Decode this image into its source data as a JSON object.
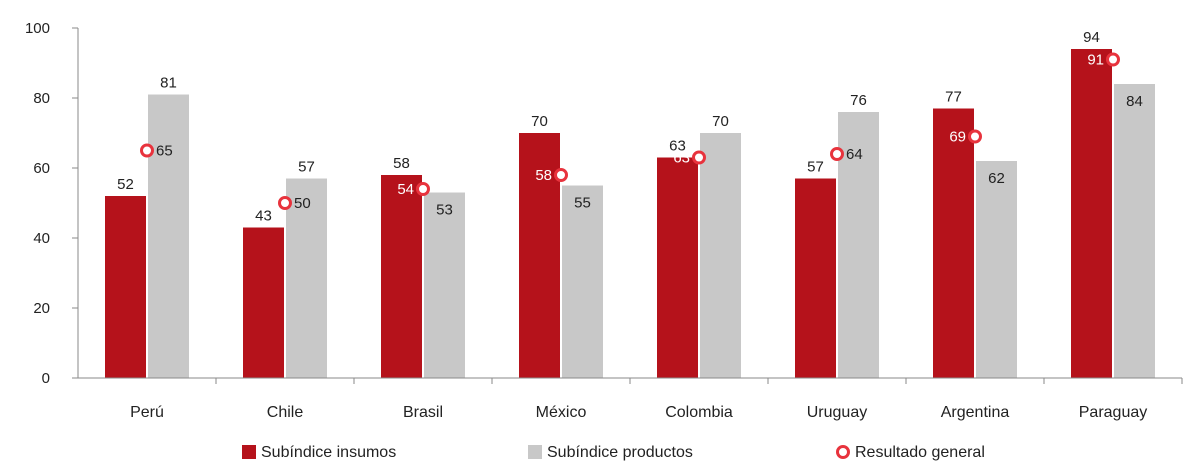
{
  "chart_data": {
    "type": "bar",
    "categories": [
      "Perú",
      "Chile",
      "Brasil",
      "México",
      "Colombia",
      "Uruguay",
      "Argentina",
      "Paraguay"
    ],
    "series": [
      {
        "name": "Subíndice insumos",
        "type": "bar",
        "color": "#b5121b",
        "values": [
          52,
          43,
          58,
          70,
          63,
          57,
          77,
          94
        ]
      },
      {
        "name": "Subíndice productos",
        "type": "bar",
        "color": "#c8c8c8",
        "values": [
          81,
          57,
          53,
          55,
          70,
          76,
          62,
          84
        ]
      },
      {
        "name": "Resultado general",
        "type": "marker",
        "color": "#e8333d",
        "values": [
          65,
          50,
          54,
          58,
          63,
          64,
          69,
          91
        ]
      }
    ],
    "ylim": [
      0,
      100
    ],
    "yticks": [
      0,
      20,
      40,
      60,
      80,
      100
    ],
    "grid": false,
    "legend_position": "bottom",
    "title": "",
    "xlabel": "",
    "ylabel": ""
  }
}
